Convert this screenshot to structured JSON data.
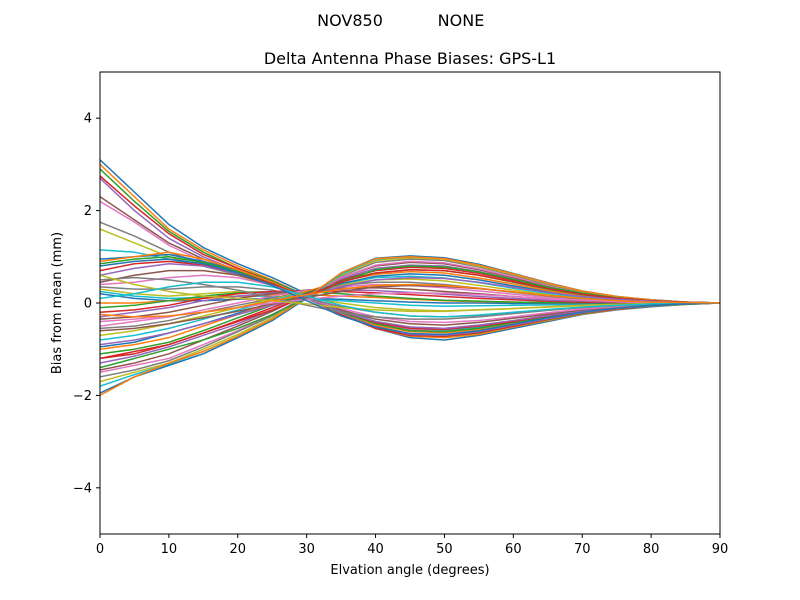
{
  "chart_data": {
    "type": "line",
    "suptitle": {
      "left": "NOV850",
      "right": "NONE"
    },
    "title": "Delta Antenna Phase Biases: GPS-L1",
    "xlabel": "Elvation angle (degrees)",
    "ylabel": "Bias from mean (mm)",
    "xlim": [
      0,
      90
    ],
    "ylim": [
      -5,
      5
    ],
    "xticks": [
      0,
      10,
      20,
      30,
      40,
      50,
      60,
      70,
      80,
      90
    ],
    "yticks": [
      -4,
      -2,
      0,
      2,
      4
    ],
    "ytick_labels": [
      "−4",
      "−2",
      "0",
      "2",
      "4"
    ],
    "grid": false,
    "legend": "none",
    "x": [
      0,
      5,
      10,
      15,
      20,
      25,
      30,
      35,
      40,
      45,
      50,
      55,
      60,
      65,
      70,
      75,
      80,
      85,
      90
    ],
    "colors": [
      "#1f77b4",
      "#ff7f0e",
      "#2ca02c",
      "#d62728",
      "#9467bd",
      "#8c564b",
      "#e377c2",
      "#7f7f7f",
      "#bcbd22",
      "#17becf"
    ],
    "series": [
      {
        "values": [
          3.1,
          2.4,
          1.7,
          1.2,
          0.85,
          0.55,
          0.2,
          -0.2,
          -0.55,
          -0.75,
          -0.8,
          -0.7,
          -0.55,
          -0.4,
          -0.25,
          -0.15,
          -0.08,
          -0.03,
          0
        ]
      },
      {
        "values": [
          3.0,
          2.3,
          1.6,
          1.15,
          0.8,
          0.5,
          0.15,
          -0.2,
          -0.55,
          -0.72,
          -0.75,
          -0.68,
          -0.52,
          -0.38,
          -0.24,
          -0.14,
          -0.07,
          -0.03,
          0
        ]
      },
      {
        "values": [
          2.9,
          2.2,
          1.55,
          1.1,
          0.75,
          0.48,
          0.15,
          -0.2,
          -0.52,
          -0.7,
          -0.72,
          -0.65,
          -0.5,
          -0.36,
          -0.23,
          -0.13,
          -0.07,
          -0.03,
          0
        ]
      },
      {
        "values": [
          2.75,
          2.1,
          1.5,
          1.05,
          0.75,
          0.45,
          0.1,
          -0.25,
          -0.55,
          -0.7,
          -0.72,
          -0.64,
          -0.5,
          -0.35,
          -0.22,
          -0.13,
          -0.06,
          -0.02,
          0
        ]
      },
      {
        "values": [
          2.7,
          2.0,
          1.4,
          1.0,
          0.7,
          0.42,
          0.1,
          -0.22,
          -0.5,
          -0.68,
          -0.7,
          -0.62,
          -0.48,
          -0.34,
          -0.21,
          -0.12,
          -0.06,
          -0.02,
          0
        ]
      },
      {
        "values": [
          2.3,
          1.8,
          1.3,
          0.95,
          0.7,
          0.42,
          0.12,
          -0.2,
          -0.45,
          -0.6,
          -0.62,
          -0.55,
          -0.43,
          -0.3,
          -0.19,
          -0.11,
          -0.05,
          -0.02,
          0
        ]
      },
      {
        "values": [
          2.2,
          1.75,
          1.25,
          0.9,
          0.65,
          0.4,
          0.1,
          -0.2,
          -0.45,
          -0.58,
          -0.6,
          -0.53,
          -0.42,
          -0.3,
          -0.19,
          -0.11,
          -0.05,
          -0.02,
          0
        ]
      },
      {
        "values": [
          1.75,
          1.45,
          1.1,
          0.85,
          0.65,
          0.4,
          0.12,
          -0.18,
          -0.42,
          -0.55,
          -0.57,
          -0.5,
          -0.4,
          -0.28,
          -0.18,
          -0.1,
          -0.05,
          -0.02,
          0
        ]
      },
      {
        "values": [
          1.6,
          1.3,
          1.0,
          0.8,
          0.6,
          0.38,
          0.1,
          -0.18,
          -0.4,
          -0.52,
          -0.55,
          -0.48,
          -0.38,
          -0.27,
          -0.17,
          -0.1,
          -0.05,
          -0.02,
          0
        ]
      },
      {
        "values": [
          1.15,
          1.1,
          0.95,
          0.8,
          0.62,
          0.42,
          0.15,
          -0.15,
          -0.4,
          -0.55,
          -0.58,
          -0.52,
          -0.4,
          -0.28,
          -0.18,
          -0.1,
          -0.05,
          -0.02,
          0
        ]
      },
      {
        "values": [
          0.95,
          1.0,
          1.05,
          0.9,
          0.7,
          0.45,
          0.15,
          -0.18,
          -0.45,
          -0.6,
          -0.62,
          -0.55,
          -0.43,
          -0.3,
          -0.19,
          -0.11,
          -0.05,
          -0.02,
          0
        ]
      },
      {
        "values": [
          0.9,
          1.0,
          1.1,
          0.95,
          0.72,
          0.45,
          0.12,
          -0.2,
          -0.48,
          -0.62,
          -0.64,
          -0.57,
          -0.44,
          -0.31,
          -0.2,
          -0.11,
          -0.05,
          -0.02,
          0
        ]
      },
      {
        "values": [
          0.85,
          0.95,
          1.0,
          0.88,
          0.68,
          0.42,
          0.1,
          -0.2,
          -0.45,
          -0.6,
          -0.62,
          -0.55,
          -0.42,
          -0.3,
          -0.19,
          -0.11,
          -0.05,
          -0.02,
          0
        ]
      },
      {
        "values": [
          0.7,
          0.85,
          0.9,
          0.82,
          0.65,
          0.42,
          0.12,
          -0.18,
          -0.42,
          -0.55,
          -0.57,
          -0.5,
          -0.4,
          -0.28,
          -0.18,
          -0.1,
          -0.05,
          -0.02,
          0
        ]
      },
      {
        "values": [
          0.6,
          0.75,
          0.85,
          0.8,
          0.62,
          0.4,
          0.1,
          -0.18,
          -0.4,
          -0.52,
          -0.55,
          -0.48,
          -0.38,
          -0.27,
          -0.17,
          -0.1,
          -0.05,
          -0.02,
          0
        ]
      },
      {
        "values": [
          0.45,
          0.6,
          0.7,
          0.7,
          0.6,
          0.4,
          0.12,
          -0.15,
          -0.35,
          -0.45,
          -0.48,
          -0.42,
          -0.33,
          -0.24,
          -0.15,
          -0.09,
          -0.04,
          -0.02,
          0
        ]
      },
      {
        "values": [
          0.4,
          0.45,
          0.55,
          0.6,
          0.55,
          0.38,
          0.1,
          -0.12,
          -0.3,
          -0.4,
          -0.42,
          -0.38,
          -0.3,
          -0.21,
          -0.13,
          -0.08,
          -0.04,
          -0.01,
          0
        ]
      },
      {
        "values": [
          0.35,
          0.3,
          0.3,
          0.35,
          0.35,
          0.28,
          0.1,
          -0.08,
          -0.2,
          -0.28,
          -0.3,
          -0.27,
          -0.22,
          -0.15,
          -0.1,
          -0.06,
          -0.03,
          -0.01,
          0
        ]
      },
      {
        "values": [
          0.3,
          0.2,
          0.15,
          0.2,
          0.25,
          0.22,
          0.12,
          0.0,
          -0.1,
          -0.15,
          -0.17,
          -0.15,
          -0.12,
          -0.09,
          -0.06,
          -0.03,
          -0.02,
          -0.01,
          0
        ]
      },
      {
        "values": [
          0.25,
          0.15,
          0.1,
          0.12,
          0.15,
          0.15,
          0.1,
          0.05,
          0.0,
          -0.05,
          -0.07,
          -0.06,
          -0.05,
          -0.04,
          -0.03,
          -0.02,
          -0.01,
          0.0,
          0
        ]
      },
      {
        "values": [
          0.2,
          0.1,
          0.05,
          0.05,
          0.08,
          0.1,
          0.1,
          0.08,
          0.05,
          0.02,
          0.0,
          0.0,
          -0.01,
          -0.01,
          -0.01,
          0.0,
          0.0,
          0.0,
          0
        ]
      },
      {
        "values": [
          0.0,
          0.0,
          0.05,
          0.1,
          0.15,
          0.18,
          0.18,
          0.15,
          0.12,
          0.08,
          0.05,
          0.03,
          0.02,
          0.01,
          0.01,
          0.0,
          0.0,
          0.0,
          0
        ]
      },
      {
        "values": [
          -0.1,
          -0.05,
          0.05,
          0.15,
          0.22,
          0.25,
          0.25,
          0.2,
          0.15,
          0.1,
          0.06,
          0.04,
          0.02,
          0.01,
          0.01,
          0.0,
          0.0,
          0.0,
          0
        ]
      },
      {
        "values": [
          -0.2,
          -0.15,
          -0.05,
          0.1,
          0.2,
          0.25,
          0.27,
          0.25,
          0.22,
          0.18,
          0.14,
          0.1,
          0.07,
          0.04,
          0.02,
          0.01,
          0.01,
          0.0,
          0
        ]
      },
      {
        "values": [
          -0.3,
          -0.2,
          -0.1,
          0.05,
          0.15,
          0.22,
          0.27,
          0.28,
          0.27,
          0.23,
          0.19,
          0.14,
          0.1,
          0.06,
          0.04,
          0.02,
          0.01,
          0.0,
          0
        ]
      },
      {
        "values": [
          -0.35,
          -0.3,
          -0.2,
          -0.05,
          0.1,
          0.2,
          0.28,
          0.32,
          0.33,
          0.3,
          0.25,
          0.2,
          0.14,
          0.09,
          0.05,
          0.03,
          0.01,
          0.0,
          0
        ]
      },
      {
        "values": [
          -0.5,
          -0.4,
          -0.3,
          -0.15,
          0.0,
          0.15,
          0.27,
          0.35,
          0.4,
          0.38,
          0.33,
          0.26,
          0.19,
          0.12,
          0.07,
          0.04,
          0.02,
          0.01,
          0
        ]
      },
      {
        "values": [
          -0.55,
          -0.5,
          -0.38,
          -0.2,
          -0.05,
          0.1,
          0.25,
          0.38,
          0.45,
          0.45,
          0.4,
          0.32,
          0.23,
          0.15,
          0.09,
          0.05,
          0.02,
          0.01,
          0
        ]
      },
      {
        "values": [
          -0.7,
          -0.6,
          -0.45,
          -0.28,
          -0.1,
          0.08,
          0.25,
          0.4,
          0.5,
          0.52,
          0.48,
          0.38,
          0.28,
          0.18,
          0.11,
          0.06,
          0.03,
          0.01,
          0
        ]
      },
      {
        "values": [
          -0.8,
          -0.7,
          -0.55,
          -0.35,
          -0.15,
          0.05,
          0.25,
          0.42,
          0.55,
          0.58,
          0.54,
          0.44,
          0.32,
          0.21,
          0.13,
          0.07,
          0.03,
          0.01,
          0
        ]
      },
      {
        "values": [
          -0.95,
          -0.85,
          -0.65,
          -0.45,
          -0.22,
          0.0,
          0.22,
          0.42,
          0.58,
          0.63,
          0.6,
          0.5,
          0.37,
          0.25,
          0.15,
          0.08,
          0.04,
          0.01,
          0
        ]
      },
      {
        "values": [
          -1.0,
          -0.9,
          -0.75,
          -0.5,
          -0.25,
          0.0,
          0.25,
          0.47,
          0.62,
          0.68,
          0.65,
          0.54,
          0.41,
          0.27,
          0.16,
          0.09,
          0.04,
          0.01,
          0
        ]
      },
      {
        "values": [
          -1.1,
          -1.0,
          -0.85,
          -0.6,
          -0.32,
          -0.05,
          0.22,
          0.48,
          0.65,
          0.72,
          0.7,
          0.6,
          0.45,
          0.3,
          0.18,
          0.1,
          0.05,
          0.02,
          0
        ]
      },
      {
        "values": [
          -1.2,
          -1.05,
          -0.9,
          -0.65,
          -0.38,
          -0.1,
          0.2,
          0.5,
          0.7,
          0.77,
          0.75,
          0.64,
          0.49,
          0.33,
          0.2,
          0.11,
          0.05,
          0.02,
          0
        ]
      },
      {
        "values": [
          -1.3,
          -1.15,
          -0.95,
          -0.7,
          -0.45,
          -0.15,
          0.18,
          0.52,
          0.75,
          0.82,
          0.8,
          0.68,
          0.52,
          0.35,
          0.21,
          0.12,
          0.05,
          0.02,
          0
        ]
      },
      {
        "values": [
          -1.45,
          -1.3,
          -1.1,
          -0.8,
          -0.5,
          -0.18,
          0.18,
          0.55,
          0.8,
          0.88,
          0.85,
          0.72,
          0.55,
          0.37,
          0.22,
          0.12,
          0.06,
          0.02,
          0
        ]
      },
      {
        "values": [
          -1.5,
          -1.35,
          -1.2,
          -0.9,
          -0.6,
          -0.25,
          0.15,
          0.55,
          0.82,
          0.9,
          0.87,
          0.74,
          0.57,
          0.38,
          0.23,
          0.13,
          0.06,
          0.02,
          0
        ]
      },
      {
        "values": [
          -1.6,
          -1.45,
          -1.25,
          -0.95,
          -0.62,
          -0.28,
          0.15,
          0.58,
          0.88,
          0.95,
          0.92,
          0.78,
          0.6,
          0.4,
          0.24,
          0.13,
          0.06,
          0.02,
          0
        ]
      },
      {
        "values": [
          -1.7,
          -1.5,
          -1.3,
          -1.0,
          -0.68,
          -0.32,
          0.12,
          0.6,
          0.92,
          0.98,
          0.95,
          0.8,
          0.62,
          0.42,
          0.25,
          0.14,
          0.06,
          0.02,
          0
        ]
      },
      {
        "values": [
          -1.8,
          -1.55,
          -1.32,
          -1.05,
          -0.72,
          -0.35,
          0.12,
          0.62,
          0.95,
          1.0,
          0.97,
          0.82,
          0.63,
          0.43,
          0.26,
          0.14,
          0.07,
          0.02,
          0
        ]
      },
      {
        "values": [
          -1.95,
          -1.6,
          -1.35,
          -1.1,
          -0.75,
          -0.38,
          0.1,
          0.65,
          0.97,
          1.02,
          0.98,
          0.84,
          0.64,
          0.44,
          0.26,
          0.14,
          0.07,
          0.02,
          0
        ]
      },
      {
        "values": [
          -2.0,
          -1.6,
          -1.3,
          -1.05,
          -0.72,
          -0.35,
          0.12,
          0.65,
          0.96,
          1.0,
          0.96,
          0.82,
          0.63,
          0.43,
          0.26,
          0.14,
          0.07,
          0.02,
          0
        ]
      },
      {
        "values": [
          -1.4,
          -1.2,
          -1.0,
          -0.8,
          -0.55,
          -0.25,
          0.1,
          0.45,
          0.72,
          0.8,
          0.78,
          0.67,
          0.51,
          0.34,
          0.21,
          0.11,
          0.05,
          0.02,
          0
        ]
      },
      {
        "values": [
          -1.2,
          -1.1,
          -0.9,
          -0.65,
          -0.4,
          -0.15,
          0.15,
          0.45,
          0.65,
          0.72,
          0.7,
          0.6,
          0.46,
          0.31,
          0.19,
          0.1,
          0.05,
          0.02,
          0
        ]
      },
      {
        "values": [
          -0.9,
          -0.8,
          -0.65,
          -0.45,
          -0.25,
          -0.05,
          0.15,
          0.35,
          0.5,
          0.55,
          0.53,
          0.45,
          0.34,
          0.23,
          0.14,
          0.08,
          0.04,
          0.01,
          0
        ]
      },
      {
        "values": [
          -0.6,
          -0.55,
          -0.45,
          -0.32,
          -0.18,
          -0.02,
          0.12,
          0.25,
          0.35,
          0.38,
          0.36,
          0.31,
          0.24,
          0.16,
          0.1,
          0.05,
          0.02,
          0.01,
          0
        ]
      },
      {
        "values": [
          -0.4,
          -0.35,
          -0.28,
          -0.2,
          -0.1,
          0.0,
          0.08,
          0.15,
          0.2,
          0.22,
          0.21,
          0.18,
          0.14,
          0.09,
          0.06,
          0.03,
          0.01,
          0.0,
          0
        ]
      },
      {
        "values": [
          0.5,
          0.55,
          0.5,
          0.4,
          0.28,
          0.12,
          -0.05,
          -0.2,
          -0.3,
          -0.35,
          -0.35,
          -0.3,
          -0.23,
          -0.16,
          -0.1,
          -0.05,
          -0.02,
          -0.01,
          0
        ]
      },
      {
        "values": [
          0.6,
          0.4,
          0.25,
          0.15,
          0.1,
          0.05,
          -0.02,
          -0.1,
          -0.15,
          -0.18,
          -0.18,
          -0.15,
          -0.12,
          -0.08,
          -0.05,
          -0.03,
          -0.01,
          0.0,
          0
        ]
      },
      {
        "values": [
          0.1,
          0.2,
          0.35,
          0.45,
          0.45,
          0.35,
          0.15,
          -0.05,
          -0.2,
          -0.28,
          -0.3,
          -0.26,
          -0.2,
          -0.14,
          -0.09,
          -0.05,
          -0.02,
          -0.01,
          0
        ]
      },
      {
        "values": [
          0.8,
          0.9,
          0.95,
          0.85,
          0.65,
          0.38,
          0.05,
          -0.28,
          -0.52,
          -0.66,
          -0.68,
          -0.6,
          -0.46,
          -0.32,
          -0.2,
          -0.11,
          -0.05,
          -0.02,
          0
        ]
      },
      {
        "values": [
          -0.25,
          -0.3,
          -0.28,
          -0.2,
          -0.1,
          0.05,
          0.18,
          0.3,
          0.38,
          0.4,
          0.38,
          0.32,
          0.24,
          0.16,
          0.1,
          0.05,
          0.02,
          0.01,
          0
        ]
      }
    ]
  }
}
